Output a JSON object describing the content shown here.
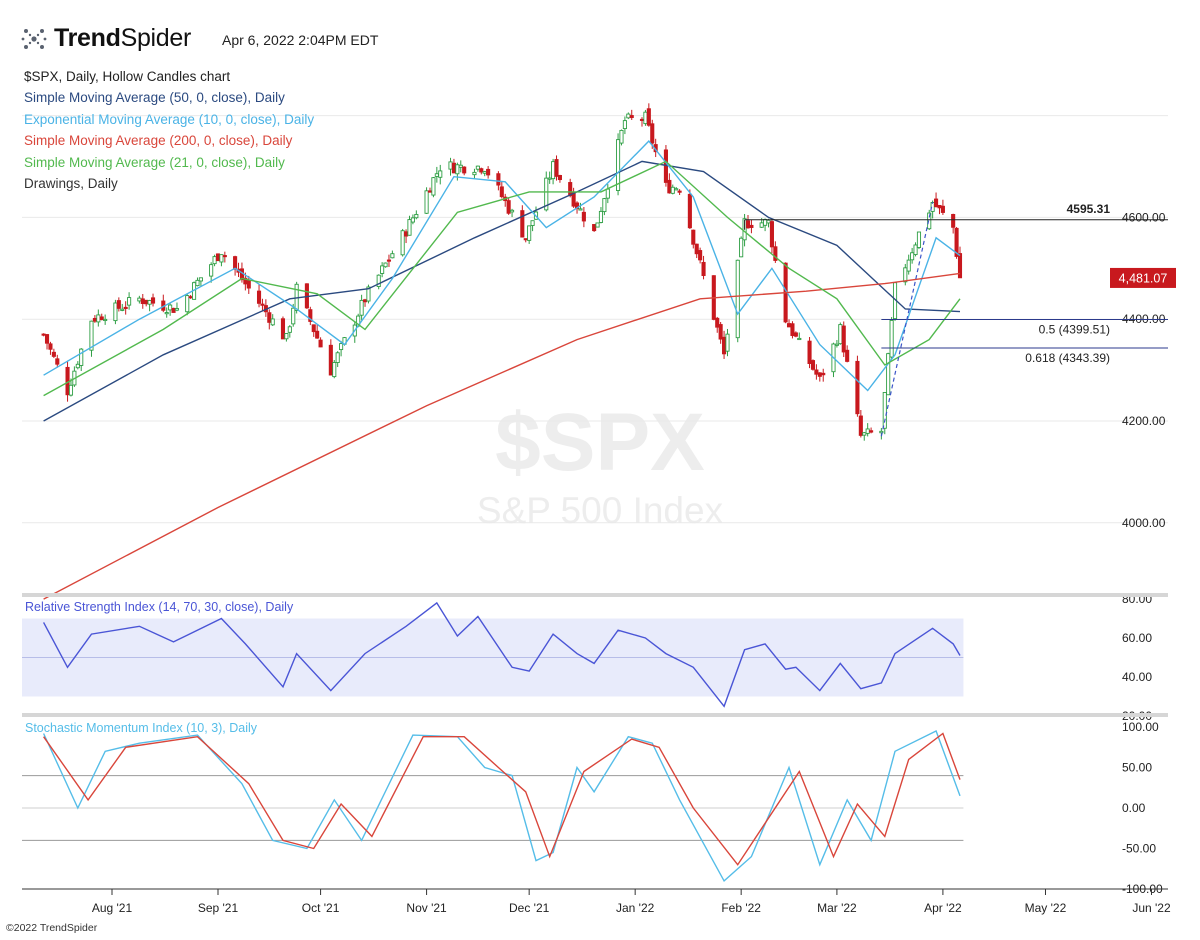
{
  "header": {
    "brand_first": "Trend",
    "brand_second": "Spider",
    "timestamp": "Apr 6, 2022 2:04PM EDT",
    "copyright": "©2022 TrendSpider"
  },
  "legend": [
    {
      "label": "$SPX, Daily, Hollow Candles chart",
      "color": "#222222"
    },
    {
      "label": "Simple Moving Average (50, 0, close), Daily",
      "color": "#2b4a80"
    },
    {
      "label": "Exponential Moving Average (10, 0, close), Daily",
      "color": "#4ab3e6"
    },
    {
      "label": "Simple Moving Average (200, 0, close), Daily",
      "color": "#d9463b"
    },
    {
      "label": "Simple Moving Average (21, 0, close), Daily",
      "color": "#52b94e"
    },
    {
      "label": "Drawings, Daily",
      "color": "#333333"
    }
  ],
  "watermark": {
    "symbol": "$SPX",
    "name": "S&P 500 Index"
  },
  "colors": {
    "up": "#2e9e44",
    "down": "#c8191e",
    "sma50": "#2b4a80",
    "ema10": "#4ab3e6",
    "sma200": "#d9463b",
    "sma21": "#52b94e",
    "rsi": "#4a55d6",
    "smi": "#55bde8",
    "smi_signal": "#d9463b",
    "price_badge": "#c8191e"
  },
  "chart_data": [
    {
      "type": "candlestick",
      "title": "$SPX, Daily, Hollow Candles chart",
      "x_axis_ticks": [
        "Aug '21",
        "Sep '21",
        "Oct '21",
        "Nov '21",
        "Dec '21",
        "Jan '22",
        "Feb '22",
        "Mar '22",
        "Apr '22",
        "May '22",
        "Jun '22"
      ],
      "ylim": [
        3850,
        4820
      ],
      "y_ticks": [
        "4000.00",
        "4200.00",
        "4400.00",
        "4600.00"
      ],
      "last_price": "4,481.07",
      "annotations": [
        {
          "label": "4595.31",
          "value": 4595.31
        },
        {
          "label": "0.5 (4399.51)",
          "value": 4399.51
        },
        {
          "label": "0.618 (4343.39)",
          "value": 4343.39
        }
      ],
      "anchors": [
        {
          "x": "2021-07-12",
          "y": 4370
        },
        {
          "x": "2021-07-19",
          "y": 4260
        },
        {
          "x": "2021-07-26",
          "y": 4400
        },
        {
          "x": "2021-08-09",
          "y": 4440
        },
        {
          "x": "2021-08-20",
          "y": 4420
        },
        {
          "x": "2021-09-02",
          "y": 4535
        },
        {
          "x": "2021-09-10",
          "y": 4460
        },
        {
          "x": "2021-09-21",
          "y": 4360
        },
        {
          "x": "2021-09-24",
          "y": 4460
        },
        {
          "x": "2021-10-04",
          "y": 4300
        },
        {
          "x": "2021-10-14",
          "y": 4440
        },
        {
          "x": "2021-10-26",
          "y": 4575
        },
        {
          "x": "2021-11-05",
          "y": 4700
        },
        {
          "x": "2021-11-18",
          "y": 4700
        },
        {
          "x": "2021-11-30",
          "y": 4560
        },
        {
          "x": "2021-12-08",
          "y": 4700
        },
        {
          "x": "2021-12-20",
          "y": 4570
        },
        {
          "x": "2021-12-29",
          "y": 4790
        },
        {
          "x": "2022-01-04",
          "y": 4795
        },
        {
          "x": "2022-01-10",
          "y": 4660
        },
        {
          "x": "2022-01-14",
          "y": 4660
        },
        {
          "x": "2022-01-27",
          "y": 4330
        },
        {
          "x": "2022-02-02",
          "y": 4590
        },
        {
          "x": "2022-02-09",
          "y": 4590
        },
        {
          "x": "2022-02-14",
          "y": 4400
        },
        {
          "x": "2022-02-18",
          "y": 4350
        },
        {
          "x": "2022-02-24",
          "y": 4280
        },
        {
          "x": "2022-03-02",
          "y": 4380
        },
        {
          "x": "2022-03-08",
          "y": 4170
        },
        {
          "x": "2022-03-14",
          "y": 4180
        },
        {
          "x": "2022-03-18",
          "y": 4460
        },
        {
          "x": "2022-03-29",
          "y": 4630
        },
        {
          "x": "2022-04-04",
          "y": 4580
        },
        {
          "x": "2022-04-06",
          "y": 4481
        }
      ],
      "series": [
        {
          "name": "Simple Moving Average (50, 0, close), Daily",
          "points": [
            [
              "2021-07-12",
              4200
            ],
            [
              "2021-08-16",
              4330
            ],
            [
              "2021-09-22",
              4440
            ],
            [
              "2021-10-15",
              4460
            ],
            [
              "2021-11-15",
              4560
            ],
            [
              "2021-12-15",
              4650
            ],
            [
              "2022-01-03",
              4710
            ],
            [
              "2022-01-21",
              4690
            ],
            [
              "2022-02-09",
              4600
            ],
            [
              "2022-03-01",
              4545
            ],
            [
              "2022-03-21",
              4420
            ],
            [
              "2022-04-06",
              4415
            ]
          ]
        },
        {
          "name": "Exponential Moving Average (10, 0, close), Daily",
          "points": [
            [
              "2021-07-12",
              4290
            ],
            [
              "2021-08-09",
              4400
            ],
            [
              "2021-09-06",
              4500
            ],
            [
              "2021-09-24",
              4420
            ],
            [
              "2021-10-08",
              4350
            ],
            [
              "2021-10-22",
              4480
            ],
            [
              "2021-11-09",
              4680
            ],
            [
              "2021-11-24",
              4670
            ],
            [
              "2021-12-06",
              4580
            ],
            [
              "2021-12-20",
              4640
            ],
            [
              "2022-01-05",
              4750
            ],
            [
              "2022-01-18",
              4640
            ],
            [
              "2022-01-31",
              4410
            ],
            [
              "2022-02-10",
              4500
            ],
            [
              "2022-02-24",
              4350
            ],
            [
              "2022-03-10",
              4260
            ],
            [
              "2022-03-18",
              4330
            ],
            [
              "2022-03-30",
              4560
            ],
            [
              "2022-04-06",
              4525
            ]
          ]
        },
        {
          "name": "Simple Moving Average (200, 0, close), Daily",
          "points": [
            [
              "2021-07-12",
              3850
            ],
            [
              "2021-09-01",
              4030
            ],
            [
              "2021-11-01",
              4230
            ],
            [
              "2021-12-15",
              4360
            ],
            [
              "2022-01-20",
              4440
            ],
            [
              "2022-02-20",
              4455
            ],
            [
              "2022-03-15",
              4470
            ],
            [
              "2022-04-06",
              4490
            ]
          ]
        },
        {
          "name": "Simple Moving Average (21, 0, close), Daily",
          "points": [
            [
              "2021-07-12",
              4250
            ],
            [
              "2021-08-16",
              4380
            ],
            [
              "2021-09-08",
              4480
            ],
            [
              "2021-09-30",
              4450
            ],
            [
              "2021-10-14",
              4380
            ],
            [
              "2021-11-10",
              4610
            ],
            [
              "2021-12-01",
              4650
            ],
            [
              "2021-12-22",
              4650
            ],
            [
              "2022-01-10",
              4710
            ],
            [
              "2022-01-28",
              4600
            ],
            [
              "2022-02-15",
              4500
            ],
            [
              "2022-03-01",
              4440
            ],
            [
              "2022-03-15",
              4310
            ],
            [
              "2022-03-28",
              4360
            ],
            [
              "2022-04-06",
              4440
            ]
          ]
        }
      ]
    },
    {
      "type": "line",
      "title": "Relative Strength Index (14, 70, 30, close), Daily",
      "ylim": [
        20,
        80
      ],
      "y_ticks": [
        "20.00",
        "40.00",
        "60.00",
        "80.00"
      ],
      "band": [
        30,
        70
      ],
      "series": [
        {
          "name": "Relative Strength Index (14, 70, 30, close), Daily",
          "points": [
            [
              "2021-07-12",
              68
            ],
            [
              "2021-07-19",
              45
            ],
            [
              "2021-07-26",
              62
            ],
            [
              "2021-08-09",
              66
            ],
            [
              "2021-08-19",
              58
            ],
            [
              "2021-09-02",
              70
            ],
            [
              "2021-09-09",
              57
            ],
            [
              "2021-09-20",
              35
            ],
            [
              "2021-09-24",
              52
            ],
            [
              "2021-10-04",
              33
            ],
            [
              "2021-10-14",
              52
            ],
            [
              "2021-10-26",
              66
            ],
            [
              "2021-11-04",
              78
            ],
            [
              "2021-11-10",
              61
            ],
            [
              "2021-11-16",
              71
            ],
            [
              "2021-11-26",
              45
            ],
            [
              "2021-12-01",
              43
            ],
            [
              "2021-12-08",
              62
            ],
            [
              "2021-12-15",
              52
            ],
            [
              "2021-12-20",
              47
            ],
            [
              "2021-12-27",
              64
            ],
            [
              "2022-01-04",
              60
            ],
            [
              "2022-01-10",
              52
            ],
            [
              "2022-01-18",
              45
            ],
            [
              "2022-01-27",
              25
            ],
            [
              "2022-02-02",
              54
            ],
            [
              "2022-02-08",
              57
            ],
            [
              "2022-02-14",
              44
            ],
            [
              "2022-02-17",
              45
            ],
            [
              "2022-02-24",
              33
            ],
            [
              "2022-03-02",
              47
            ],
            [
              "2022-03-08",
              34
            ],
            [
              "2022-03-14",
              37
            ],
            [
              "2022-03-18",
              52
            ],
            [
              "2022-03-29",
              65
            ],
            [
              "2022-04-04",
              57
            ],
            [
              "2022-04-06",
              51
            ]
          ]
        }
      ]
    },
    {
      "type": "line",
      "title": "Stochastic Momentum Index (10, 3), Daily",
      "ylim": [
        -100,
        100
      ],
      "y_ticks": [
        "-100.00",
        "-50.00",
        "0.00",
        "50.00",
        "100.00"
      ],
      "levels": [
        -40,
        40
      ],
      "series": [
        {
          "name": "SMI",
          "points": [
            [
              "2021-07-12",
              92
            ],
            [
              "2021-07-22",
              0
            ],
            [
              "2021-07-30",
              70
            ],
            [
              "2021-08-09",
              80
            ],
            [
              "2021-08-26",
              90
            ],
            [
              "2021-09-08",
              30
            ],
            [
              "2021-09-17",
              -40
            ],
            [
              "2021-09-27",
              -50
            ],
            [
              "2021-10-05",
              10
            ],
            [
              "2021-10-13",
              -40
            ],
            [
              "2021-10-28",
              90
            ],
            [
              "2021-11-10",
              88
            ],
            [
              "2021-11-18",
              50
            ],
            [
              "2021-11-26",
              40
            ],
            [
              "2021-12-03",
              -65
            ],
            [
              "2021-12-08",
              -55
            ],
            [
              "2021-12-15",
              50
            ],
            [
              "2021-12-20",
              20
            ],
            [
              "2021-12-30",
              88
            ],
            [
              "2022-01-06",
              80
            ],
            [
              "2022-01-14",
              10
            ],
            [
              "2022-01-27",
              -90
            ],
            [
              "2022-02-04",
              -60
            ],
            [
              "2022-02-15",
              50
            ],
            [
              "2022-02-24",
              -70
            ],
            [
              "2022-03-04",
              10
            ],
            [
              "2022-03-11",
              -40
            ],
            [
              "2022-03-18",
              70
            ],
            [
              "2022-03-30",
              95
            ],
            [
              "2022-04-06",
              15
            ]
          ]
        },
        {
          "name": "Signal",
          "points": [
            [
              "2021-07-12",
              88
            ],
            [
              "2021-07-25",
              10
            ],
            [
              "2021-08-05",
              75
            ],
            [
              "2021-08-26",
              88
            ],
            [
              "2021-09-10",
              30
            ],
            [
              "2021-09-20",
              -40
            ],
            [
              "2021-09-29",
              -50
            ],
            [
              "2021-10-07",
              5
            ],
            [
              "2021-10-16",
              -35
            ],
            [
              "2021-10-31",
              88
            ],
            [
              "2021-11-12",
              88
            ],
            [
              "2021-11-22",
              50
            ],
            [
              "2021-11-30",
              20
            ],
            [
              "2021-12-07",
              -60
            ],
            [
              "2021-12-17",
              45
            ],
            [
              "2021-12-31",
              85
            ],
            [
              "2022-01-08",
              75
            ],
            [
              "2022-01-18",
              0
            ],
            [
              "2022-01-31",
              -70
            ],
            [
              "2022-02-18",
              45
            ],
            [
              "2022-02-28",
              -60
            ],
            [
              "2022-03-07",
              5
            ],
            [
              "2022-03-15",
              -35
            ],
            [
              "2022-03-22",
              60
            ],
            [
              "2022-04-01",
              92
            ],
            [
              "2022-04-06",
              35
            ]
          ]
        }
      ]
    }
  ]
}
